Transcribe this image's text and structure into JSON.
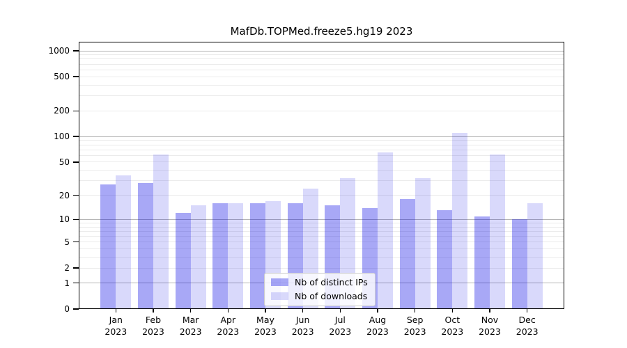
{
  "chart_data": {
    "type": "bar",
    "title": "MafDb.TOPMed.freeze5.hg19 2023",
    "y_scale": "log1p (symlog-like, 0 at baseline)",
    "ylim": [
      0,
      1275
    ],
    "yticks": [
      1000,
      500,
      200,
      100,
      50,
      20,
      10,
      5,
      2,
      1,
      0
    ],
    "grid": true,
    "legend_position": "lower center, inside plot",
    "categories": [
      "Jan",
      "Feb",
      "Mar",
      "Apr",
      "May",
      "Jun",
      "Jul",
      "Aug",
      "Sep",
      "Oct",
      "Nov",
      "Dec"
    ],
    "year": "2023",
    "series": [
      {
        "name": "Nb of distinct IPs",
        "color": "rgba(0,0,230,0.34)",
        "color_hex_on_white": "#a9a9f7",
        "values": [
          27,
          28,
          12,
          16,
          16,
          16,
          15,
          14,
          18,
          13,
          11,
          10
        ]
      },
      {
        "name": "Nb of downloads",
        "color": "rgba(0,0,230,0.15)",
        "color_hex_on_white": "#d9d9fa",
        "values": [
          35,
          62,
          15,
          16,
          17,
          24,
          32,
          65,
          32,
          111,
          61,
          16
        ]
      }
    ],
    "colors": {
      "grid_minor": "#ebebeb",
      "grid_major": "#b3b3b3",
      "axis": "#000000",
      "legend_bg": "rgba(255,255,255,0.8)",
      "legend_border": "#cccccc",
      "background": "#ffffff"
    }
  }
}
